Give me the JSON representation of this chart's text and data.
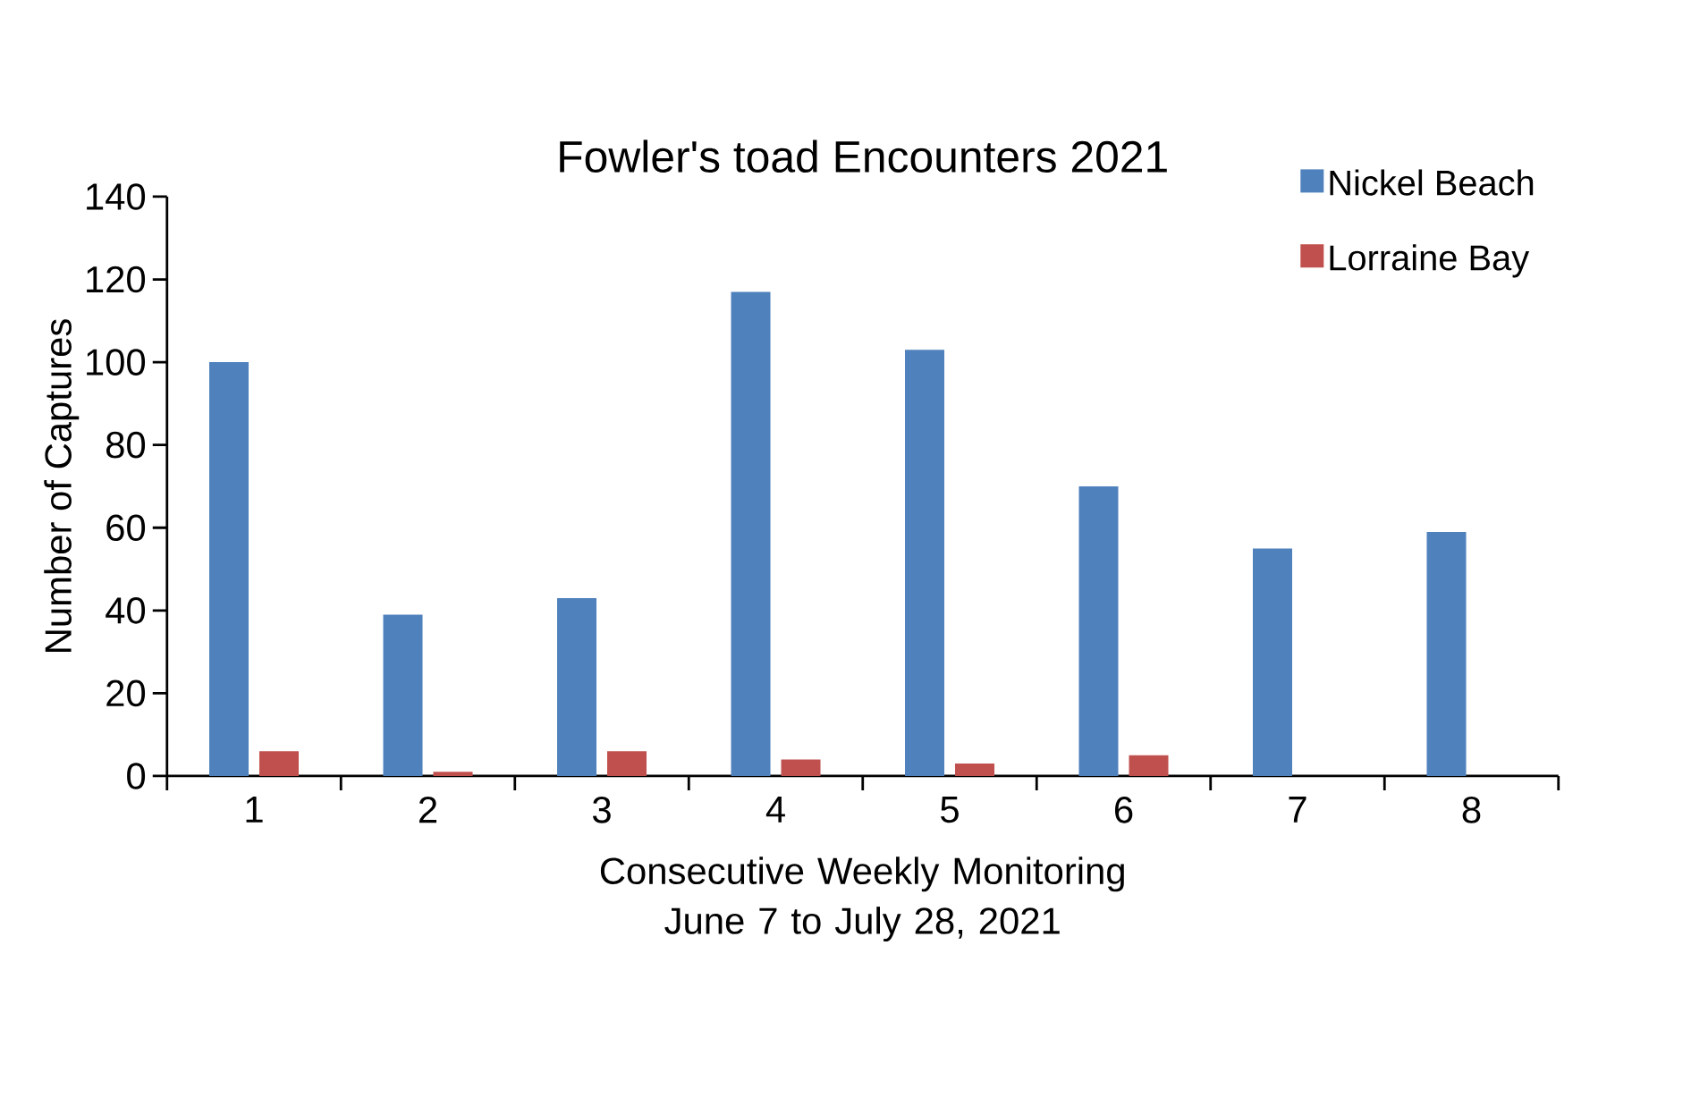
{
  "chart_data": {
    "type": "bar",
    "title": "Fowler's toad Encounters 2021",
    "xlabel": "Consecutive Weekly Monitoring June 7 to July 28, 2021",
    "ylabel": "Number of Captures",
    "categories": [
      "1",
      "2",
      "3",
      "4",
      "5",
      "6",
      "7",
      "8"
    ],
    "series": [
      {
        "name": "Nickel Beach",
        "color": "#4f81bd",
        "values": [
          100,
          39,
          43,
          117,
          103,
          70,
          55,
          59
        ]
      },
      {
        "name": "Lorraine Bay",
        "color": "#c0504d",
        "values": [
          6,
          1,
          6,
          4,
          3,
          5,
          0,
          0
        ]
      }
    ],
    "ylim": [
      0,
      140
    ],
    "yticks": [
      0,
      20,
      40,
      60,
      80,
      100,
      120,
      140
    ],
    "legend": "top right"
  }
}
